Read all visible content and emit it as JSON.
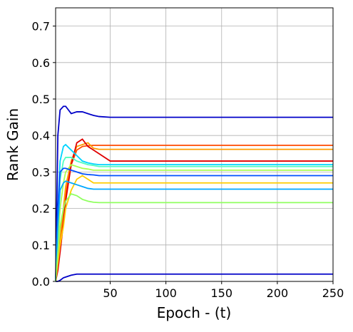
{
  "chart_data": {
    "type": "line",
    "xlabel": "Epoch - (t)",
    "ylabel": "Rank Gain",
    "x": [
      1,
      3,
      5,
      8,
      10,
      15,
      20,
      25,
      30,
      35,
      40,
      50,
      75,
      250
    ],
    "series": [
      {
        "color": "#0000c8",
        "values": [
          0,
          0.4,
          0.47,
          0.48,
          0.48,
          0.46,
          0.465,
          0.465,
          0.46,
          0.455,
          0.452,
          0.45,
          0.45,
          0.45
        ]
      },
      {
        "color": "#0000c8",
        "values": [
          0,
          0,
          0.003,
          0.01,
          0.012,
          0.017,
          0.02,
          0.02,
          0.02,
          0.02,
          0.02,
          0.02,
          0.02,
          0.02
        ]
      },
      {
        "color": "#ff4a00",
        "values": [
          0,
          0.04,
          0.1,
          0.18,
          0.24,
          0.32,
          0.36,
          0.37,
          0.372,
          0.373,
          0.373,
          0.373,
          0.373,
          0.373
        ]
      },
      {
        "color": "#ff9c00",
        "values": [
          0,
          0.05,
          0.12,
          0.2,
          0.26,
          0.33,
          0.37,
          0.375,
          0.38,
          0.365,
          0.362,
          0.362,
          0.362,
          0.362
        ]
      },
      {
        "color": "#e00000",
        "values": [
          0,
          0.03,
          0.08,
          0.16,
          0.22,
          0.32,
          0.38,
          0.39,
          0.37,
          0.36,
          0.35,
          0.33,
          0.33,
          0.33
        ]
      },
      {
        "color": "#00d4ff",
        "values": [
          0,
          0.2,
          0.33,
          0.37,
          0.375,
          0.36,
          0.345,
          0.33,
          0.325,
          0.322,
          0.32,
          0.32,
          0.32,
          0.32
        ]
      },
      {
        "color": "#50ffc0",
        "values": [
          0,
          0.15,
          0.28,
          0.33,
          0.34,
          0.34,
          0.33,
          0.325,
          0.32,
          0.318,
          0.315,
          0.315,
          0.315,
          0.315
        ]
      },
      {
        "color": "#a8ff50",
        "values": [
          0,
          0.1,
          0.2,
          0.27,
          0.3,
          0.32,
          0.315,
          0.31,
          0.308,
          0.305,
          0.305,
          0.305,
          0.305,
          0.305
        ]
      },
      {
        "color": "#0050ff",
        "values": [
          0,
          0.2,
          0.3,
          0.31,
          0.31,
          0.305,
          0.3,
          0.295,
          0.293,
          0.292,
          0.29,
          0.29,
          0.29,
          0.29
        ]
      },
      {
        "color": "#ffcc00",
        "values": [
          0,
          0.05,
          0.1,
          0.15,
          0.2,
          0.25,
          0.28,
          0.29,
          0.28,
          0.27,
          0.27,
          0.27,
          0.27,
          0.27
        ]
      },
      {
        "color": "#00a8ff",
        "values": [
          0,
          0.15,
          0.25,
          0.27,
          0.275,
          0.27,
          0.265,
          0.26,
          0.255,
          0.253,
          0.253,
          0.253,
          0.253,
          0.253
        ]
      },
      {
        "color": "#90ff60",
        "values": [
          0,
          0.08,
          0.15,
          0.2,
          0.22,
          0.24,
          0.235,
          0.225,
          0.22,
          0.217,
          0.216,
          0.216,
          0.216,
          0.216
        ]
      }
    ],
    "xlim": [
      1,
      250
    ],
    "ylim": [
      0,
      0.75
    ],
    "xticks": [
      50,
      100,
      150,
      200,
      250
    ],
    "yticks": [
      {
        "value": 0,
        "label": "0.0"
      },
      0.1,
      0.2,
      0.3,
      0.4,
      0.5,
      0.6,
      0.7
    ],
    "grid": true
  }
}
